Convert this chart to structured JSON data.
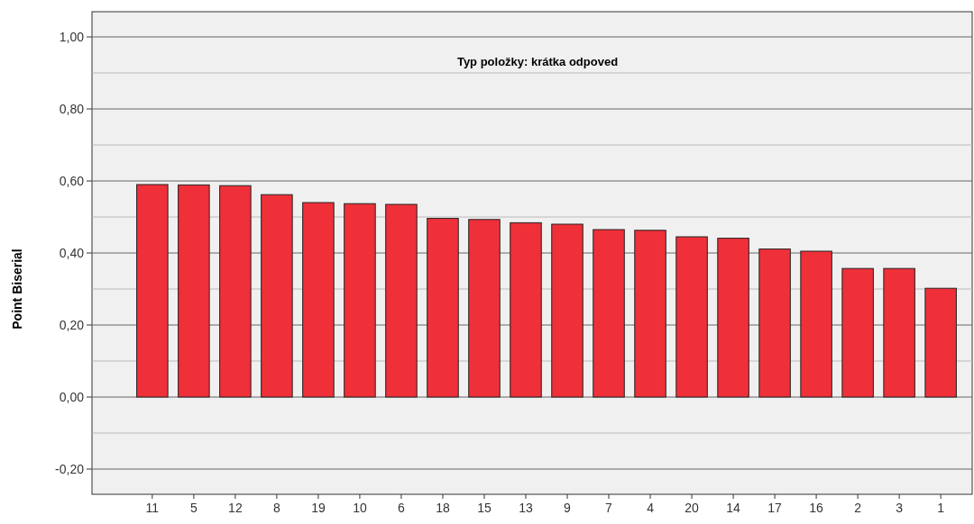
{
  "chart_data": {
    "type": "bar",
    "title": "Typ položky: krátka odpoved",
    "ylabel": "Point Biserial",
    "categories": [
      "11",
      "5",
      "12",
      "8",
      "19",
      "10",
      "6",
      "18",
      "15",
      "13",
      "9",
      "7",
      "4",
      "20",
      "14",
      "17",
      "16",
      "2",
      "3",
      "1"
    ],
    "values": [
      0.59,
      0.589,
      0.587,
      0.562,
      0.54,
      0.537,
      0.535,
      0.496,
      0.493,
      0.484,
      0.48,
      0.465,
      0.463,
      0.445,
      0.441,
      0.411,
      0.405,
      0.357,
      0.357,
      0.302
    ],
    "color": "#ef3039",
    "ylim": [
      -0.27,
      1.07
    ],
    "yticks": [
      {
        "value": -0.2,
        "label": "-0,20"
      },
      {
        "value": -0.1,
        "label": null
      },
      {
        "value": 0,
        "label": "0,00"
      },
      {
        "value": 0.1,
        "label": null
      },
      {
        "value": 0.2,
        "label": "0,20"
      },
      {
        "value": 0.3,
        "label": null
      },
      {
        "value": 0.4,
        "label": "0,40"
      },
      {
        "value": 0.5,
        "label": null
      },
      {
        "value": 0.6,
        "label": "0,60"
      },
      {
        "value": 0.7,
        "label": null
      },
      {
        "value": 0.8,
        "label": "0,80"
      },
      {
        "value": 0.9,
        "label": null
      },
      {
        "value": 1,
        "label": "1,00"
      }
    ],
    "grid": "y"
  }
}
